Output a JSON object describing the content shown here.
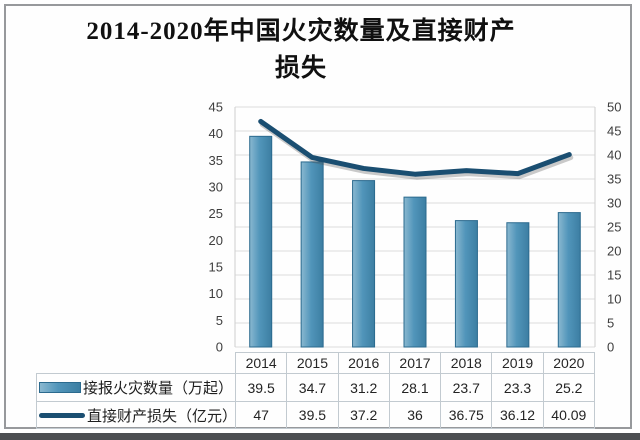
{
  "title": {
    "full": "2014-2020年中国火灾数量及直接财产损失",
    "line1": "2014-2020年中国火灾数量及直接财产",
    "line2": "损失"
  },
  "chart_data": {
    "type": "bar",
    "subtype": "bar-line-combo",
    "title": "2014-2020年中国火灾数量及直接财产损失",
    "categories": [
      "2014",
      "2015",
      "2016",
      "2017",
      "2018",
      "2019",
      "2020"
    ],
    "series": [
      {
        "name": "接报火灾数量（万起）",
        "chart": "bar",
        "axis": "left",
        "values": [
          39.5,
          34.7,
          31.2,
          28.1,
          23.7,
          23.3,
          25.2
        ]
      },
      {
        "name": "直接财产损失（亿元）",
        "chart": "line",
        "axis": "right",
        "values": [
          47,
          39.5,
          37.2,
          36,
          36.75,
          36.12,
          40.09
        ]
      }
    ],
    "left_axis": {
      "min": 0,
      "max": 45,
      "step": 5
    },
    "right_axis": {
      "min": 0,
      "max": 50,
      "step": 5
    },
    "grid": "horizontal",
    "legend_position": "data-table-left",
    "xlabel": "",
    "ylabel": ""
  },
  "colors": {
    "bar_fill": "#5195ba",
    "bar_fill_light": "#8ab8d0",
    "bar_fill_dark": "#3c7ea2",
    "bar_border": "#2b6a8e",
    "line": "#1a4e71",
    "grid": "#dcdcdc",
    "axis_line": "#cfcfcf",
    "axis_text": "#3e3e3e",
    "table_border": "#c2cad0",
    "table_text": "#232323",
    "title_text": "#101010",
    "frame_border": "#97999c",
    "bottom_band": "#4d4f52"
  }
}
